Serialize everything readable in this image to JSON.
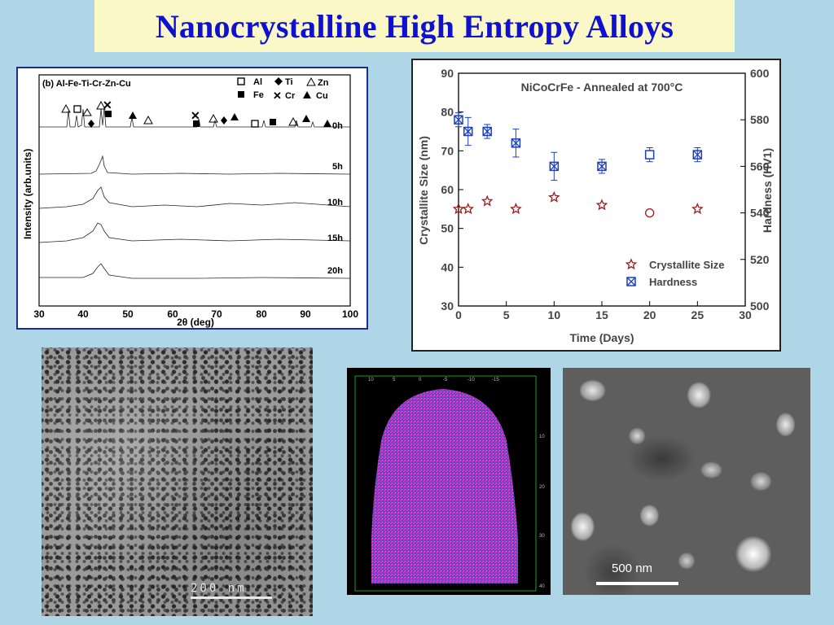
{
  "title": "Nanocrystalline High Entropy Alloys",
  "xrd": {
    "panel_label": "(b) Al-Fe-Ti-Cr-Zn-Cu",
    "ylabel": "Intensity (arb.units)",
    "xlabel": "2θ (deg)",
    "x_ticks": [
      "30",
      "40",
      "50",
      "60",
      "70",
      "80",
      "90",
      "100"
    ],
    "legend": {
      "al": "Al",
      "fe": "Fe",
      "ti": "Ti",
      "cr": "Cr",
      "zn": "Zn",
      "cu": "Cu"
    },
    "traces": [
      "0h",
      "5h",
      "10h",
      "15h",
      "20h"
    ]
  },
  "chart_data": {
    "type": "scatter",
    "title": "NiCoCrFe - Annealed at 700°C",
    "xlabel": "Time (Days)",
    "ylabel": "Crystallite Size (nm)",
    "y2label": "Hardness (HV1)",
    "xlim": [
      0,
      30
    ],
    "ylim": [
      30,
      90
    ],
    "y2lim": [
      500,
      600
    ],
    "x_ticks": [
      0,
      5,
      10,
      15,
      20,
      25,
      30
    ],
    "y_ticks": [
      30,
      40,
      50,
      60,
      70,
      80,
      90
    ],
    "y2_ticks": [
      500,
      520,
      540,
      560,
      580,
      600
    ],
    "series": [
      {
        "name": "Crystallite Size",
        "marker": "star",
        "color": "#9b1c1c",
        "axis": "left",
        "x": [
          0,
          1,
          3,
          6,
          10,
          15,
          20,
          25
        ],
        "y": [
          55,
          55,
          57,
          55,
          58,
          56,
          54,
          55
        ]
      },
      {
        "name": "Hardness",
        "marker": "boxed-x",
        "color": "#1d3fbf",
        "axis": "right",
        "x": [
          0,
          1,
          3,
          6,
          10,
          15,
          20,
          25
        ],
        "y": [
          580,
          575,
          575,
          570,
          560,
          560,
          565,
          565
        ],
        "err": [
          3,
          6,
          3,
          6,
          6,
          3,
          3,
          3
        ]
      }
    ]
  },
  "tem": {
    "scale_label": "200 nm"
  },
  "sem": {
    "scale_label": "500 nm"
  },
  "apt": {
    "top_ticks": [
      "10",
      "5",
      "0",
      "-5",
      "-10",
      "-15"
    ],
    "right_ticks": [
      "10",
      "20",
      "30",
      "40"
    ]
  }
}
